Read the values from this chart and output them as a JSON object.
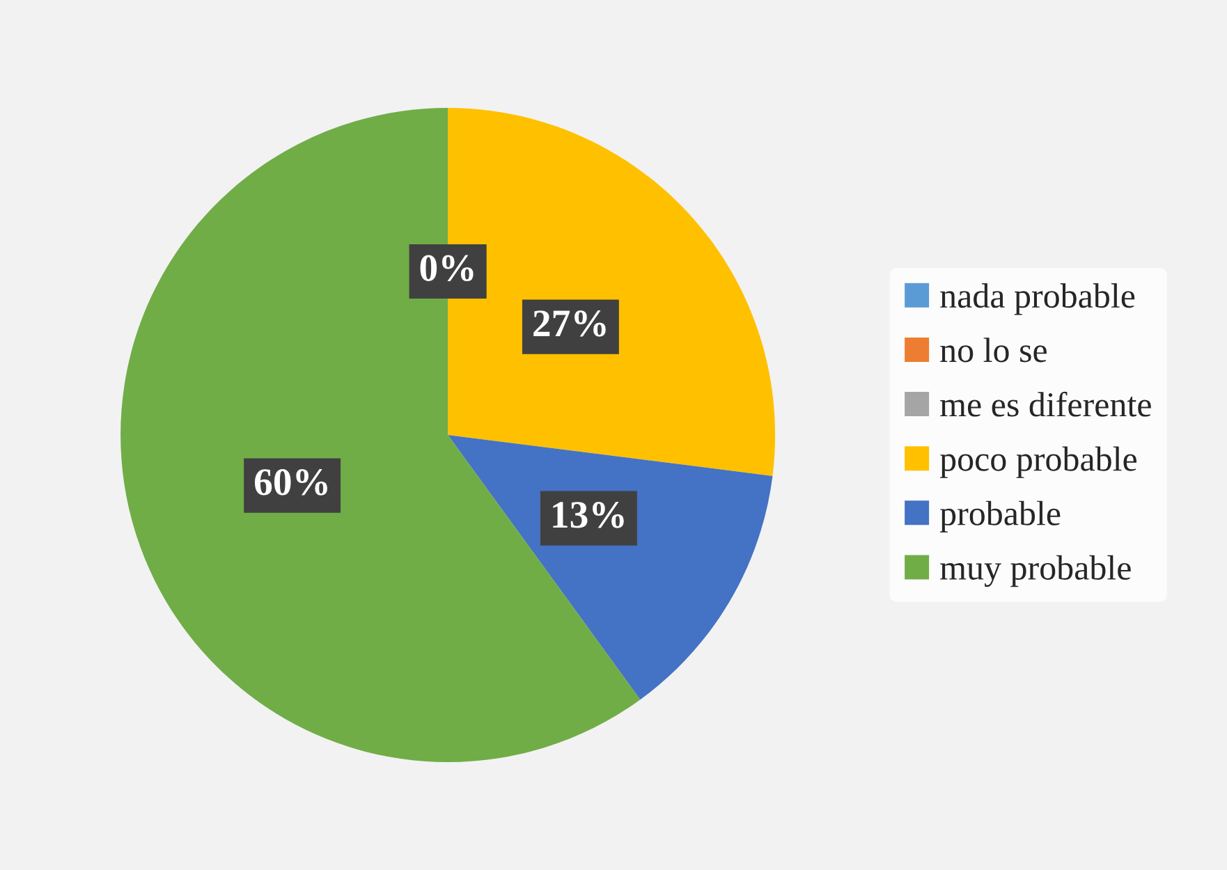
{
  "chart_data": {
    "type": "pie",
    "categories": [
      "nada probable",
      "no lo se",
      "me es diferente",
      "poco probable",
      "probable",
      "muy probable"
    ],
    "values": [
      0,
      0,
      0,
      27,
      13,
      60
    ],
    "colors": [
      "#5b9bd5",
      "#ed7d31",
      "#a5a5a5",
      "#ffc000",
      "#4472c4",
      "#70ad47"
    ],
    "value_labels": [
      "0%",
      null,
      null,
      "27%",
      "13%",
      "60%"
    ],
    "legend": "right"
  }
}
